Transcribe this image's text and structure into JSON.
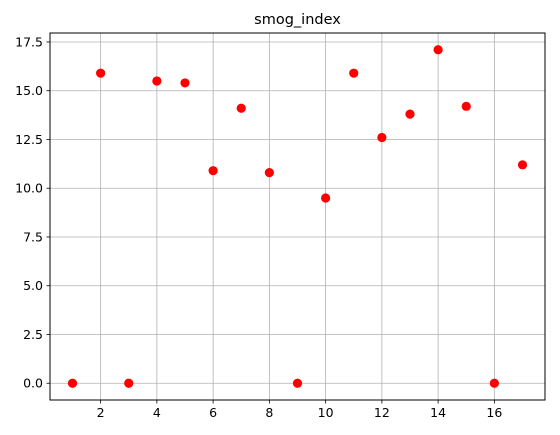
{
  "chart_data": {
    "type": "scatter",
    "title": "smog_index",
    "xlabel": "",
    "ylabel": "",
    "xlim": [
      0.2,
      17.8
    ],
    "ylim": [
      -0.86,
      17.96
    ],
    "x_ticks": [
      2,
      4,
      6,
      8,
      10,
      12,
      14,
      16
    ],
    "x_tick_labels": [
      "2",
      "4",
      "6",
      "8",
      "10",
      "12",
      "14",
      "16"
    ],
    "y_ticks": [
      0.0,
      2.5,
      5.0,
      7.5,
      10.0,
      12.5,
      15.0,
      17.5
    ],
    "y_tick_labels": [
      "0.0",
      "2.5",
      "5.0",
      "7.5",
      "10.0",
      "12.5",
      "15.0",
      "17.5"
    ],
    "grid": true,
    "marker_color": "#ff0000",
    "points": [
      {
        "x": 1,
        "y": 0.0
      },
      {
        "x": 2,
        "y": 15.9
      },
      {
        "x": 3,
        "y": 0.0
      },
      {
        "x": 4,
        "y": 15.5
      },
      {
        "x": 5,
        "y": 15.4
      },
      {
        "x": 6,
        "y": 10.9
      },
      {
        "x": 7,
        "y": 14.1
      },
      {
        "x": 8,
        "y": 10.8
      },
      {
        "x": 9,
        "y": 0.0
      },
      {
        "x": 10,
        "y": 9.5
      },
      {
        "x": 11,
        "y": 15.9
      },
      {
        "x": 12,
        "y": 12.6
      },
      {
        "x": 13,
        "y": 13.8
      },
      {
        "x": 14,
        "y": 17.1
      },
      {
        "x": 15,
        "y": 14.2
      },
      {
        "x": 16,
        "y": 0.0
      },
      {
        "x": 17,
        "y": 11.2
      }
    ]
  }
}
